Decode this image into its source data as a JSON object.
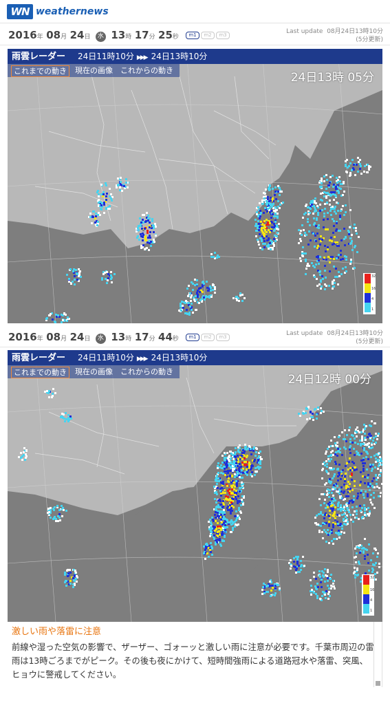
{
  "brand": {
    "logo_mark": "WN",
    "name": "weathernews"
  },
  "snapshots": [
    {
      "date_year": "2016",
      "date_month": "08",
      "date_day": "24",
      "weekday": "水",
      "hour": "13",
      "minute": "17",
      "second": "25",
      "units": {
        "year": "年",
        "month": "月",
        "day": "日",
        "hour": "時",
        "minute": "分",
        "second": "秒"
      },
      "modes": [
        "m1",
        "m2",
        "m3"
      ],
      "active_mode": "m1",
      "last_update_label": "Last update",
      "last_update_value": "08月24日13時10分",
      "update_interval": "(5分更新)"
    },
    {
      "date_year": "2016",
      "date_month": "08",
      "date_day": "24",
      "weekday": "水",
      "hour": "13",
      "minute": "17",
      "second": "44",
      "units": {
        "year": "年",
        "month": "月",
        "day": "日",
        "hour": "時",
        "minute": "分",
        "second": "秒"
      },
      "modes": [
        "m1",
        "m2",
        "m3"
      ],
      "active_mode": "m1",
      "last_update_label": "Last update",
      "last_update_value": "08月24日13時10分",
      "update_interval": "(5分更新)"
    }
  ],
  "panels": [
    {
      "title": "雨雲レーダー",
      "range_start": "24日11時10分",
      "range_arrow": "▶▶▶",
      "range_end": "24日13時10分",
      "tabs": [
        "これまでの動き",
        "現在の画像",
        "これからの動き"
      ],
      "active_tab": 0,
      "frame_time": "24日13時 05分",
      "legend": [
        "32",
        "16",
        "4",
        "1"
      ]
    },
    {
      "title": "雨雲レーダー",
      "range_start": "24日11時10分",
      "range_arrow": "▶▶▶",
      "range_end": "24日13時10分",
      "tabs": [
        "これまでの動き",
        "現在の画像",
        "これからの動き"
      ],
      "active_tab": 0,
      "frame_time": "24日12時 00分",
      "legend": [
        "32",
        "16",
        "4",
        "1"
      ]
    }
  ],
  "colors": {
    "title_bar": "#1e3a8c",
    "land": "#b8b8b8",
    "sea": "#7e7e7e",
    "rain_heavy": "#e8201c",
    "rain_strong": "#f5e614",
    "rain_moderate": "#1e2fd9",
    "rain_light": "#46d4f0",
    "rain_weak": "#ffffff",
    "notice_heading": "#e8740e"
  },
  "notice": {
    "heading": "激しい雨や落雷に注意",
    "body": "前線や湿った空気の影響で、ザーザー、ゴォーッと激しい雨に注意が必要です。千葉市周辺の雷雨は13時ごろまでがピーク。その後も夜にかけて、短時間強雨による道路冠水や落雷、突風、ヒョウに警戒してください。"
  }
}
